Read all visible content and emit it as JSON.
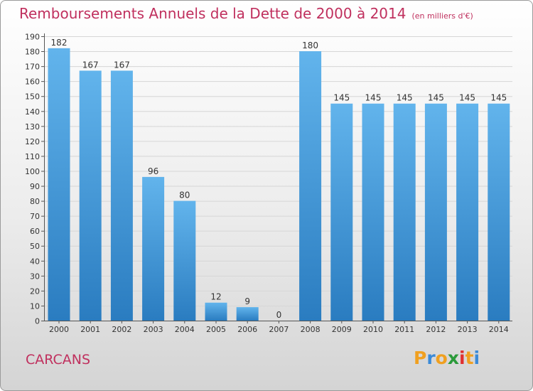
{
  "header": {
    "title": "Remboursements Annuels de la Dette de 2000 à 2014",
    "unit": "(en milliers d'€)"
  },
  "footer": {
    "city": "CARCANS",
    "brand_letters": [
      "P",
      "r",
      "o",
      "x",
      "i",
      "t",
      "i"
    ],
    "brand_colors": [
      "#f0a020",
      "#3a8ad8",
      "#f0a020",
      "#2a9a3a",
      "#e03030",
      "#f0a020",
      "#3a8ad8"
    ]
  },
  "chart_data": {
    "type": "bar",
    "categories": [
      "2000",
      "2001",
      "2002",
      "2003",
      "2004",
      "2005",
      "2006",
      "2007",
      "2008",
      "2009",
      "2010",
      "2011",
      "2012",
      "2013",
      "2014"
    ],
    "values": [
      182,
      167,
      167,
      96,
      80,
      12,
      9,
      0,
      180,
      145,
      145,
      145,
      145,
      145,
      145
    ],
    "ylim": [
      0,
      190
    ],
    "yticks": [
      0,
      10,
      20,
      30,
      40,
      50,
      60,
      70,
      80,
      90,
      100,
      110,
      120,
      130,
      140,
      150,
      160,
      170,
      180,
      190
    ],
    "grid": true,
    "bar_color_top": "#62b4ec",
    "bar_color_bottom": "#2a7cc0"
  }
}
